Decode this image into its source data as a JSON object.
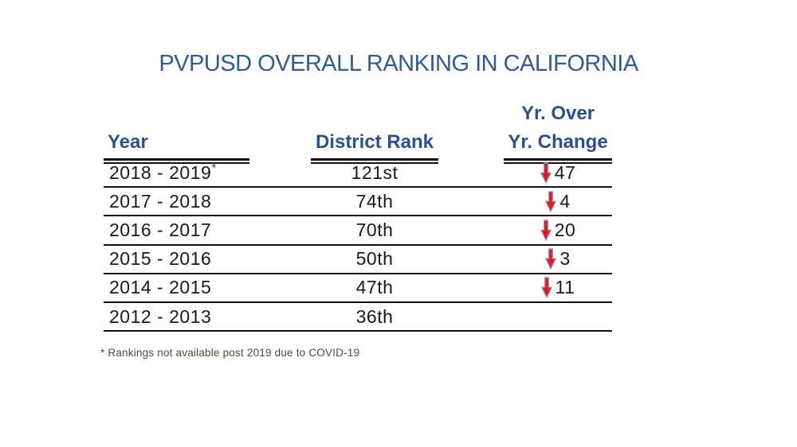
{
  "title": "PVPUSD OVERALL RANKING IN CALIFORNIA",
  "table": {
    "header": {
      "year": "Year",
      "rank": "District Rank",
      "change_line1": "Yr. Over",
      "change_line2": "Yr. Change"
    },
    "rows": [
      {
        "year": "2018 - 2019",
        "note_marker": "*",
        "rank": "121st",
        "change": "47",
        "arrow": "down"
      },
      {
        "year": "2017 - 2018",
        "note_marker": "",
        "rank": "74th",
        "change": "4",
        "arrow": "down"
      },
      {
        "year": "2016 - 2017",
        "note_marker": "",
        "rank": "70th",
        "change": "20",
        "arrow": "down"
      },
      {
        "year": "2015 - 2016",
        "note_marker": "",
        "rank": "50th",
        "change": "3",
        "arrow": "down"
      },
      {
        "year": "2014 - 2015",
        "note_marker": "",
        "rank": "47th",
        "change": "11",
        "arrow": "down"
      },
      {
        "year": "2012 - 2013",
        "note_marker": "",
        "rank": "36th",
        "change": "",
        "arrow": "none"
      }
    ]
  },
  "footnote": "* Rankings not available post 2019 due to COVID-19",
  "colors": {
    "title_blue": "#2E5A96",
    "header_blue": "#2B4F92",
    "row_text": "#1a1a1a",
    "line_black": "#111111",
    "arrow_red": "#E3191F",
    "arrow_outline": "#8B9BB4",
    "footnote_green": "#43503C"
  },
  "chart_data": {
    "type": "table",
    "title": "PVPUSD OVERALL RANKING IN CALIFORNIA",
    "columns": [
      "Year",
      "District Rank",
      "Yr. Over Yr. Change"
    ],
    "rows": [
      [
        "2018 - 2019*",
        "121st",
        "down 47"
      ],
      [
        "2017 - 2018",
        "74th",
        "down 4"
      ],
      [
        "2016 - 2017",
        "70th",
        "down 20"
      ],
      [
        "2015 - 2016",
        "50th",
        "down 3"
      ],
      [
        "2014 - 2015",
        "47th",
        "down 11"
      ],
      [
        "2012 - 2013",
        "36th",
        ""
      ]
    ],
    "yoy_change_direction": "down",
    "yoy_change_values": [
      47,
      4,
      20,
      3,
      11,
      null
    ],
    "footnote": "* Rankings not available post 2019 due to COVID-19"
  }
}
